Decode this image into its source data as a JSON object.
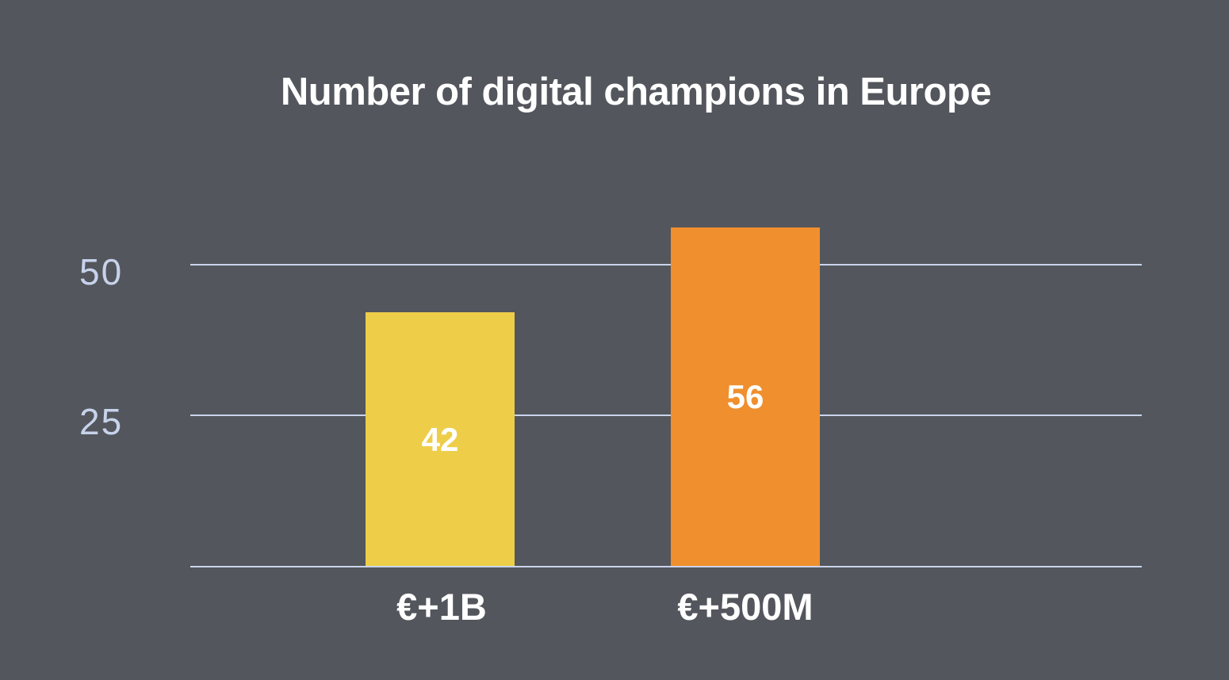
{
  "chart_data": {
    "type": "bar",
    "title": "Number of digital champions in Europe",
    "categories": [
      "€+1B",
      "€+500M"
    ],
    "values": [
      42,
      56
    ],
    "bar_colors": [
      "#EECE49",
      "#EF8F2D"
    ],
    "y_ticks": [
      25,
      50
    ],
    "ylim": [
      0,
      62.5
    ],
    "xlabel": "",
    "ylabel": "",
    "grid": "horizontal",
    "legend": "none",
    "background_color": "#53565C",
    "gridline_color": "#C9D4EC",
    "tick_label_color": "#C7D3EB",
    "value_label_color": "#FFFFFF",
    "title_color": "#FFFFFF"
  }
}
